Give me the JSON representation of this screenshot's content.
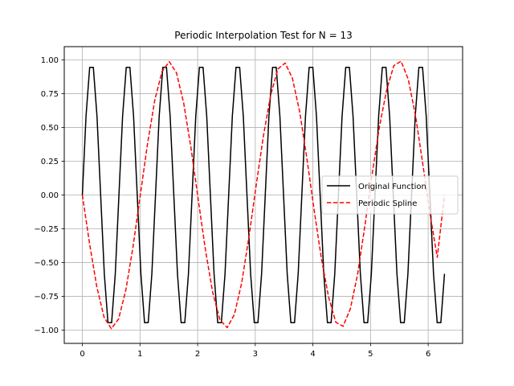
{
  "chart_data": {
    "type": "line",
    "title": "Periodic Interpolation Test for N = 13",
    "xlabel": "",
    "ylabel": "",
    "xlim": [
      -0.3142,
      6.5973
    ],
    "ylim": [
      -1.0989,
      1.0989
    ],
    "grid": true,
    "legend_position": "center-right",
    "x_ticks": [
      0,
      1,
      2,
      3,
      4,
      5,
      6
    ],
    "x_tick_labels": [
      "0",
      "1",
      "2",
      "3",
      "4",
      "5",
      "6"
    ],
    "y_ticks": [
      -1.0,
      -0.75,
      -0.5,
      -0.25,
      0.0,
      0.25,
      0.5,
      0.75,
      1.0
    ],
    "y_tick_labels": [
      "−1.00",
      "−0.75",
      "−0.50",
      "−0.25",
      "0.00",
      "0.25",
      "0.50",
      "0.75",
      "1.00"
    ],
    "series": [
      {
        "name": "Original Function",
        "color": "#000000",
        "style": "solid",
        "x": [
          0.0,
          0.0635,
          0.1269,
          0.1904,
          0.2539,
          0.3173,
          0.3808,
          0.4443,
          0.5077,
          0.5712,
          0.6347,
          0.6981,
          0.7616,
          0.8251,
          0.8885,
          0.952,
          1.0155,
          1.0789,
          1.1424,
          1.2059,
          1.2693,
          1.3328,
          1.3963,
          1.4597,
          1.5232,
          1.5867,
          1.6501,
          1.7136,
          1.7771,
          1.8405,
          1.904,
          1.9675,
          2.0309,
          2.0944,
          2.1579,
          2.2213,
          2.2848,
          2.3483,
          2.4117,
          2.4752,
          2.5387,
          2.6021,
          2.6656,
          2.7291,
          2.7925,
          2.856,
          2.9195,
          2.9829,
          3.0464,
          3.1099,
          3.1733,
          3.2368,
          3.3003,
          3.3637,
          3.4272,
          3.4907,
          3.5541,
          3.6176,
          3.6811,
          3.7445,
          3.808,
          3.8715,
          3.9349,
          3.9984,
          4.0619,
          4.1253,
          4.1888,
          4.2523,
          4.3157,
          4.3792,
          4.4427,
          4.5061,
          4.5696,
          4.6331,
          4.6965,
          4.76,
          4.8235,
          4.8869,
          4.9504,
          5.0139,
          5.0773,
          5.1408,
          5.2043,
          5.2677,
          5.3312,
          5.3947,
          5.4581,
          5.5216,
          5.5851,
          5.6485,
          5.712,
          5.7755,
          5.8389,
          5.9024,
          5.9659,
          6.0293,
          6.0928,
          6.1563,
          6.2197,
          6.2832
        ],
        "y": [
          0.0,
          0.5837,
          0.9459,
          0.9459,
          0.5837,
          0.0,
          -0.5837,
          -0.9459,
          -0.9459,
          -0.5837,
          0.0,
          0.5837,
          0.9459,
          0.9459,
          0.5837,
          0.0,
          -0.5837,
          -0.9459,
          -0.9459,
          -0.5837,
          0.0,
          0.5837,
          0.9459,
          0.9459,
          0.5837,
          0.0,
          -0.5837,
          -0.9459,
          -0.9459,
          -0.5837,
          0.0,
          0.5837,
          0.9459,
          0.9459,
          0.5837,
          0.0,
          -0.5837,
          -0.9459,
          -0.9459,
          -0.5837,
          0.0,
          0.5837,
          0.9459,
          0.9459,
          0.5837,
          0.0,
          -0.5837,
          -0.9459,
          -0.9459,
          -0.5837,
          0.0,
          0.5837,
          0.9459,
          0.9459,
          0.5837,
          0.0,
          -0.5837,
          -0.9459,
          -0.9459,
          -0.5837,
          0.0,
          0.5837,
          0.9459,
          0.9459,
          0.5837,
          0.0,
          -0.5837,
          -0.9459,
          -0.9459,
          -0.5837,
          0.0,
          0.5837,
          0.9459,
          0.9459,
          0.5837,
          0.0,
          -0.5837,
          -0.9459,
          -0.9459,
          -0.5837,
          0.0,
          0.5837,
          0.9459,
          0.9459,
          0.5837,
          0.0,
          -0.5837,
          -0.9459,
          -0.9459,
          -0.5837,
          0.0,
          0.5837,
          0.9459,
          0.9459,
          0.5837,
          0.0,
          -0.5837,
          -0.9459,
          -0.9459,
          -0.5837
        ]
      },
      {
        "name": "Periodic Spline",
        "color": "#ff0000",
        "style": "dashed",
        "x": [
          0.0,
          0.1257,
          0.2513,
          0.377,
          0.5027,
          0.6283,
          0.754,
          0.8796,
          1.0053,
          1.131,
          1.2566,
          1.3823,
          1.508,
          1.6336,
          1.7593,
          1.885,
          2.0106,
          2.1363,
          2.2619,
          2.3876,
          2.5133,
          2.6389,
          2.7646,
          2.8903,
          3.0159,
          3.1416,
          3.2673,
          3.3929,
          3.5186,
          3.6442,
          3.7699,
          3.8956,
          4.0212,
          4.1469,
          4.2726,
          4.3982,
          4.5239,
          4.6496,
          4.7752,
          4.9009,
          5.0265,
          5.1522,
          5.2779,
          5.4035,
          5.5292,
          5.6549,
          5.7805,
          5.9062,
          6.0319,
          6.1575,
          6.2832
        ],
        "y": [
          0.0,
          -0.3624,
          -0.6813,
          -0.9055,
          -0.99,
          -0.9187,
          -0.705,
          -0.3817,
          -0.0006,
          0.3799,
          0.7023,
          0.9151,
          0.9875,
          0.9043,
          0.6782,
          0.3478,
          -0.0351,
          -0.4085,
          -0.7228,
          -0.9258,
          -0.9821,
          -0.884,
          -0.6495,
          -0.3098,
          0.0717,
          0.4381,
          0.7395,
          0.9342,
          0.9774,
          0.8646,
          0.6184,
          0.2707,
          -0.1111,
          -0.4692,
          -0.7564,
          -0.9426,
          -0.9723,
          -0.8425,
          -0.5881,
          -0.2303,
          0.1504,
          0.5012,
          0.7746,
          0.9581,
          0.9911,
          0.8567,
          0.5874,
          0.2316,
          -0.1402,
          -0.4618,
          0.0
        ]
      }
    ]
  }
}
